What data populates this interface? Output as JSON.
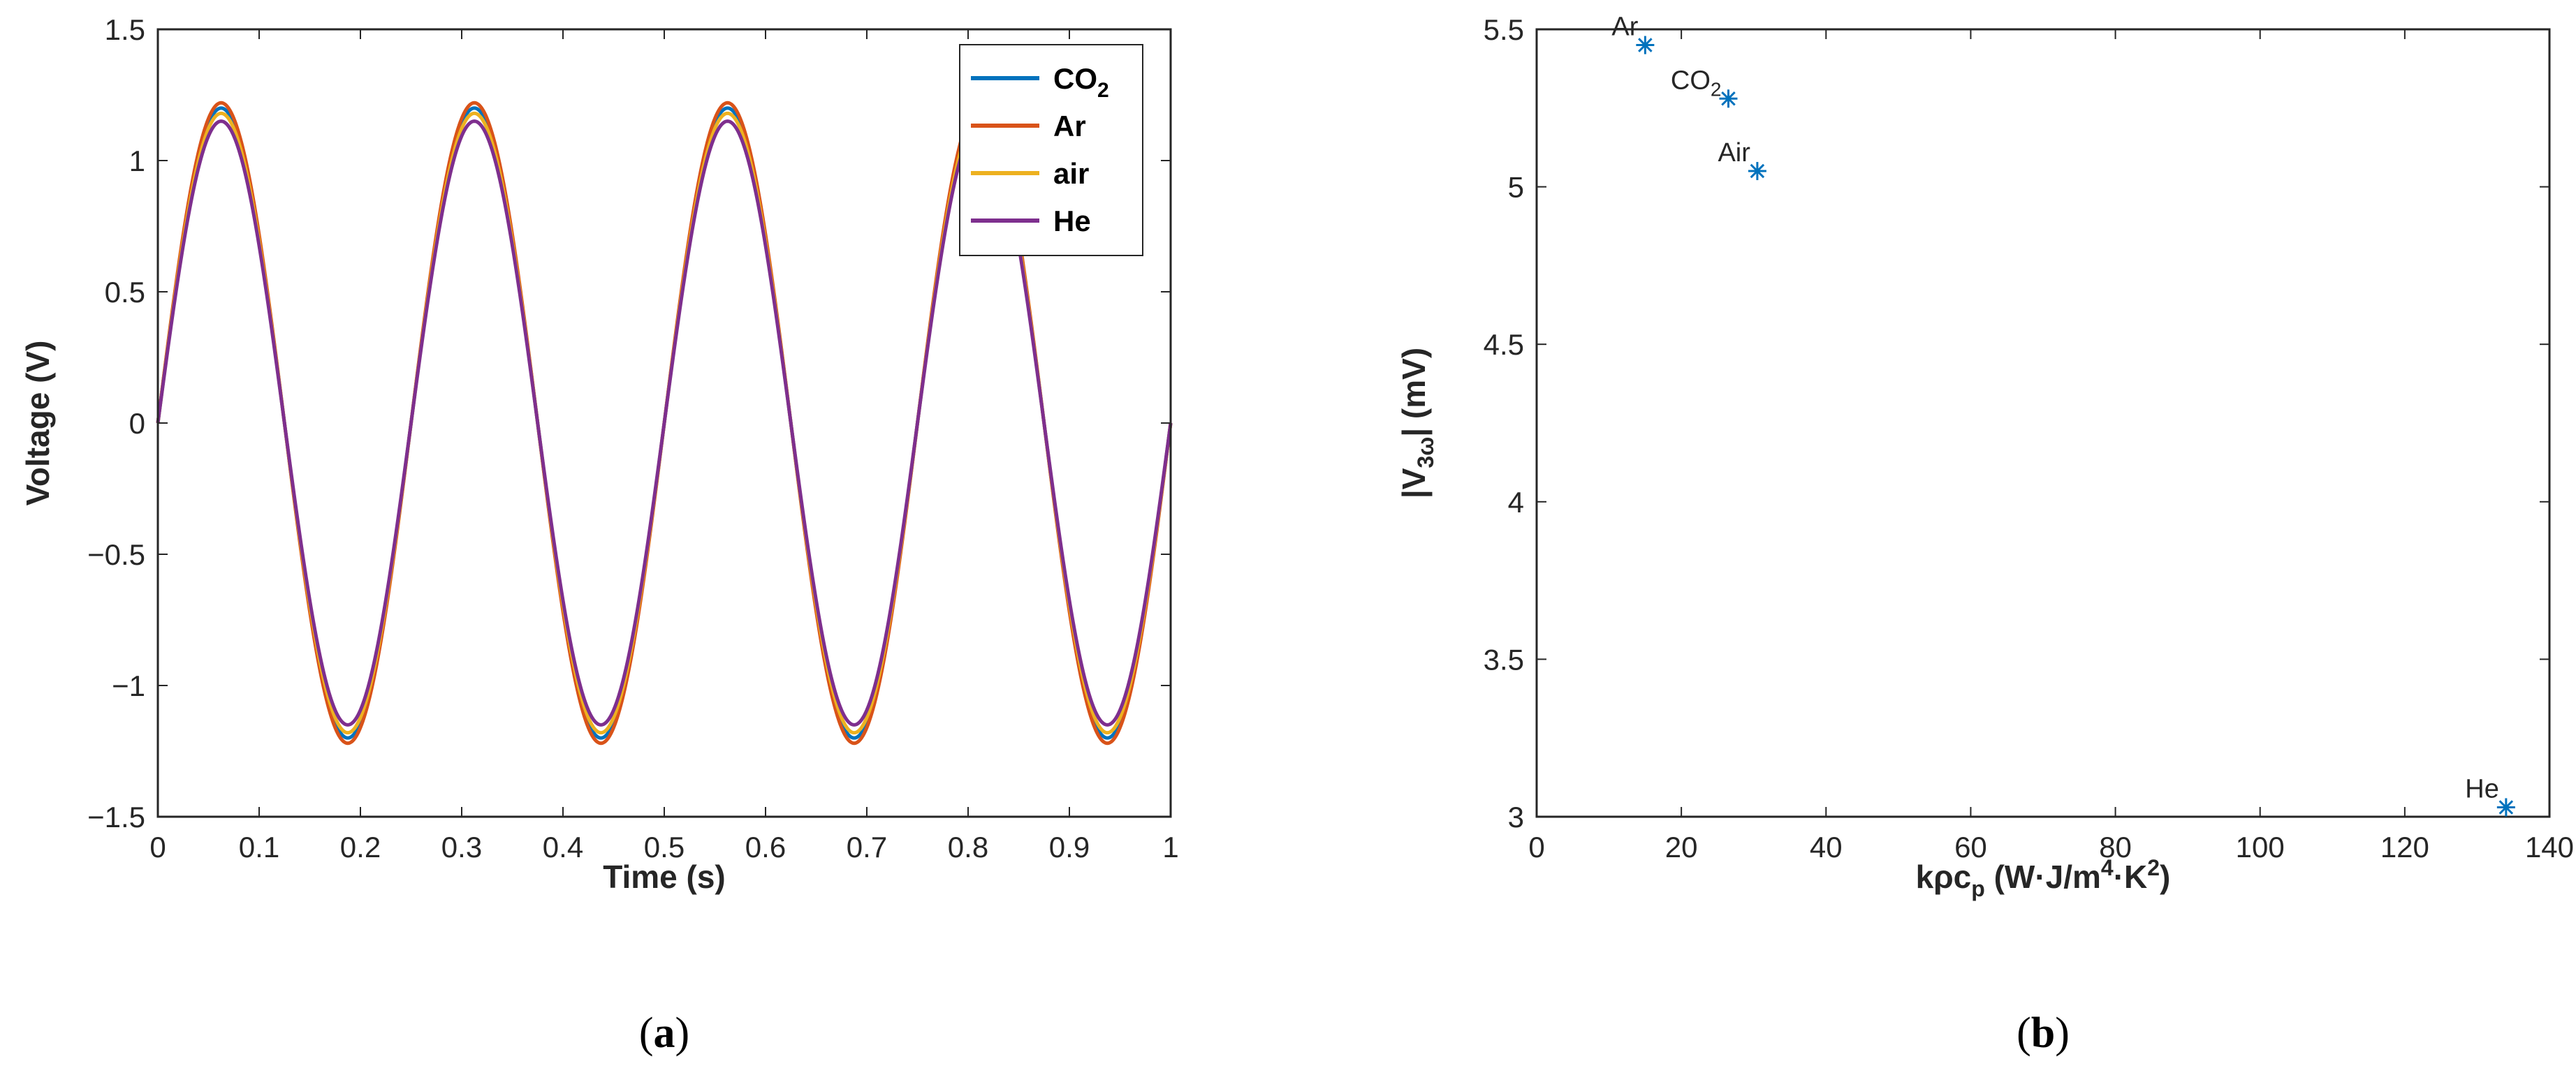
{
  "chart_data": [
    {
      "panel": "a",
      "type": "line",
      "title": "",
      "xlabel": "Time (s)",
      "ylabel": "Voltage (V)",
      "xlim": [
        0,
        1
      ],
      "ylim": [
        -1.5,
        1.5
      ],
      "xticks": [
        0,
        0.1,
        0.2,
        0.3,
        0.4,
        0.5,
        0.6,
        0.7,
        0.8,
        0.9,
        1
      ],
      "xtick_labels": [
        "0",
        "0.1",
        "0.2",
        "0.3",
        "0.4",
        "0.5",
        "0.6",
        "0.7",
        "0.8",
        "0.9",
        "1"
      ],
      "yticks": [
        -1.5,
        -1,
        -0.5,
        0,
        0.5,
        1,
        1.5
      ],
      "ytick_labels": [
        "−1.5",
        "−1",
        "−0.5",
        "0",
        "0.5",
        "1",
        "1.5"
      ],
      "grid": false,
      "legend_position": "top-right",
      "frequency_hz": 4,
      "series": [
        {
          "name": "CO",
          "subscript": "2",
          "color": "#0072BD",
          "amplitude": 1.2
        },
        {
          "name": "Ar",
          "subscript": "",
          "color": "#D95319",
          "amplitude": 1.22
        },
        {
          "name": "air",
          "subscript": "",
          "color": "#EDB120",
          "amplitude": 1.18
        },
        {
          "name": "He",
          "subscript": "",
          "color": "#7E2F8E",
          "amplitude": 1.15
        }
      ]
    },
    {
      "panel": "b",
      "type": "scatter",
      "title": "",
      "xlabel": "kρc",
      "xlabel_sub": "p",
      "xlabel_units_pre": " (W·J/m",
      "xlabel_sup1": "4",
      "xlabel_units_mid": "·K",
      "xlabel_sup2": "2",
      "xlabel_units_post": ")",
      "ylabel_pre": "|V",
      "ylabel_sub": "3ω",
      "ylabel_post": "| (mV)",
      "xlim": [
        0,
        140
      ],
      "ylim": [
        3,
        5.5
      ],
      "xticks": [
        0,
        20,
        40,
        60,
        80,
        100,
        120,
        140
      ],
      "xtick_labels": [
        "0",
        "20",
        "40",
        "60",
        "80",
        "100",
        "120",
        "140"
      ],
      "yticks": [
        3,
        3.5,
        4,
        4.5,
        5,
        5.5
      ],
      "ytick_labels": [
        "3",
        "3.5",
        "4",
        "4.5",
        "5",
        "5.5"
      ],
      "grid": false,
      "marker": "asterisk",
      "marker_color": "#0072BD",
      "points": [
        {
          "label": "Ar",
          "sub": "",
          "x": 15,
          "y": 5.45
        },
        {
          "label": "CO",
          "sub": "2",
          "x": 26.5,
          "y": 5.28
        },
        {
          "label": "Air",
          "sub": "",
          "x": 30.5,
          "y": 5.05
        },
        {
          "label": "He",
          "sub": "",
          "x": 134,
          "y": 3.03
        }
      ]
    }
  ],
  "captions": {
    "a": {
      "open": "(",
      "letter": "a",
      "close": ")"
    },
    "b": {
      "open": "(",
      "letter": "b",
      "close": ")"
    }
  }
}
